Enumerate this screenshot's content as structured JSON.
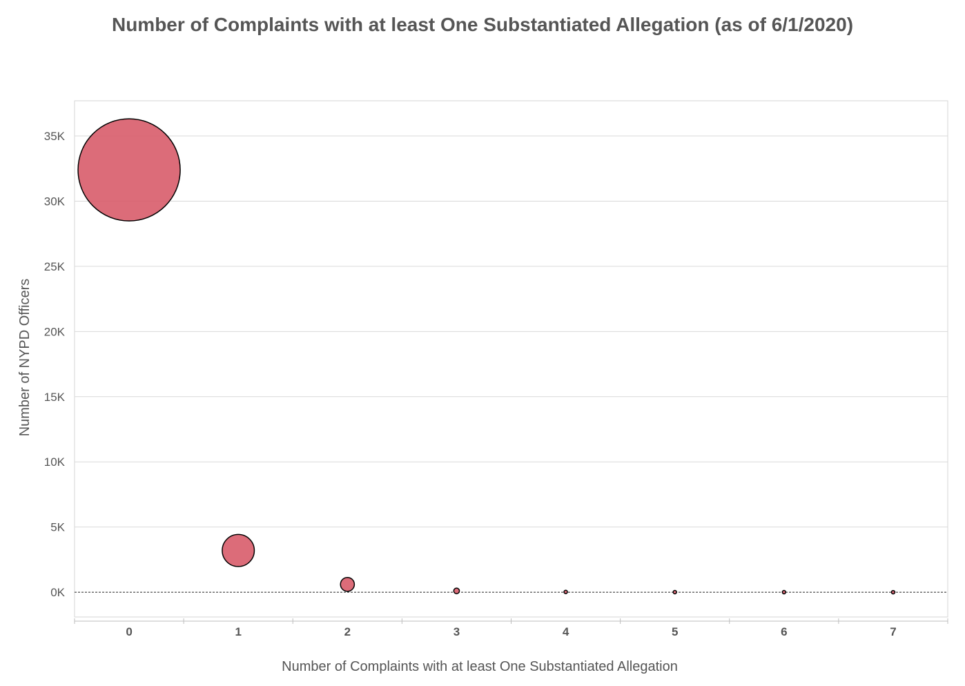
{
  "chart_data": {
    "type": "scatter",
    "title": "Number of Complaints with at least One Substantiated Allegation (as of 6/1/2020)",
    "xlabel": "Number of Complaints with at least One Substantiated Allegation",
    "ylabel": "Number of NYPD Officers",
    "x_ticks": [
      "0",
      "1",
      "2",
      "3",
      "4",
      "5",
      "6",
      "7"
    ],
    "y_ticks": [
      "0K",
      "5K",
      "10K",
      "15K",
      "20K",
      "25K",
      "30K",
      "35K"
    ],
    "ylim": [
      -1900,
      37700
    ],
    "xlim": [
      -0.5,
      7.5
    ],
    "grid": true,
    "reference_line": 0,
    "marker_color": "#d9606e",
    "points": [
      {
        "x": 0,
        "y": 32400
      },
      {
        "x": 1,
        "y": 3200
      },
      {
        "x": 2,
        "y": 600
      },
      {
        "x": 3,
        "y": 100
      },
      {
        "x": 4,
        "y": 20
      },
      {
        "x": 5,
        "y": 8
      },
      {
        "x": 6,
        "y": 4
      },
      {
        "x": 7,
        "y": 2
      }
    ]
  }
}
